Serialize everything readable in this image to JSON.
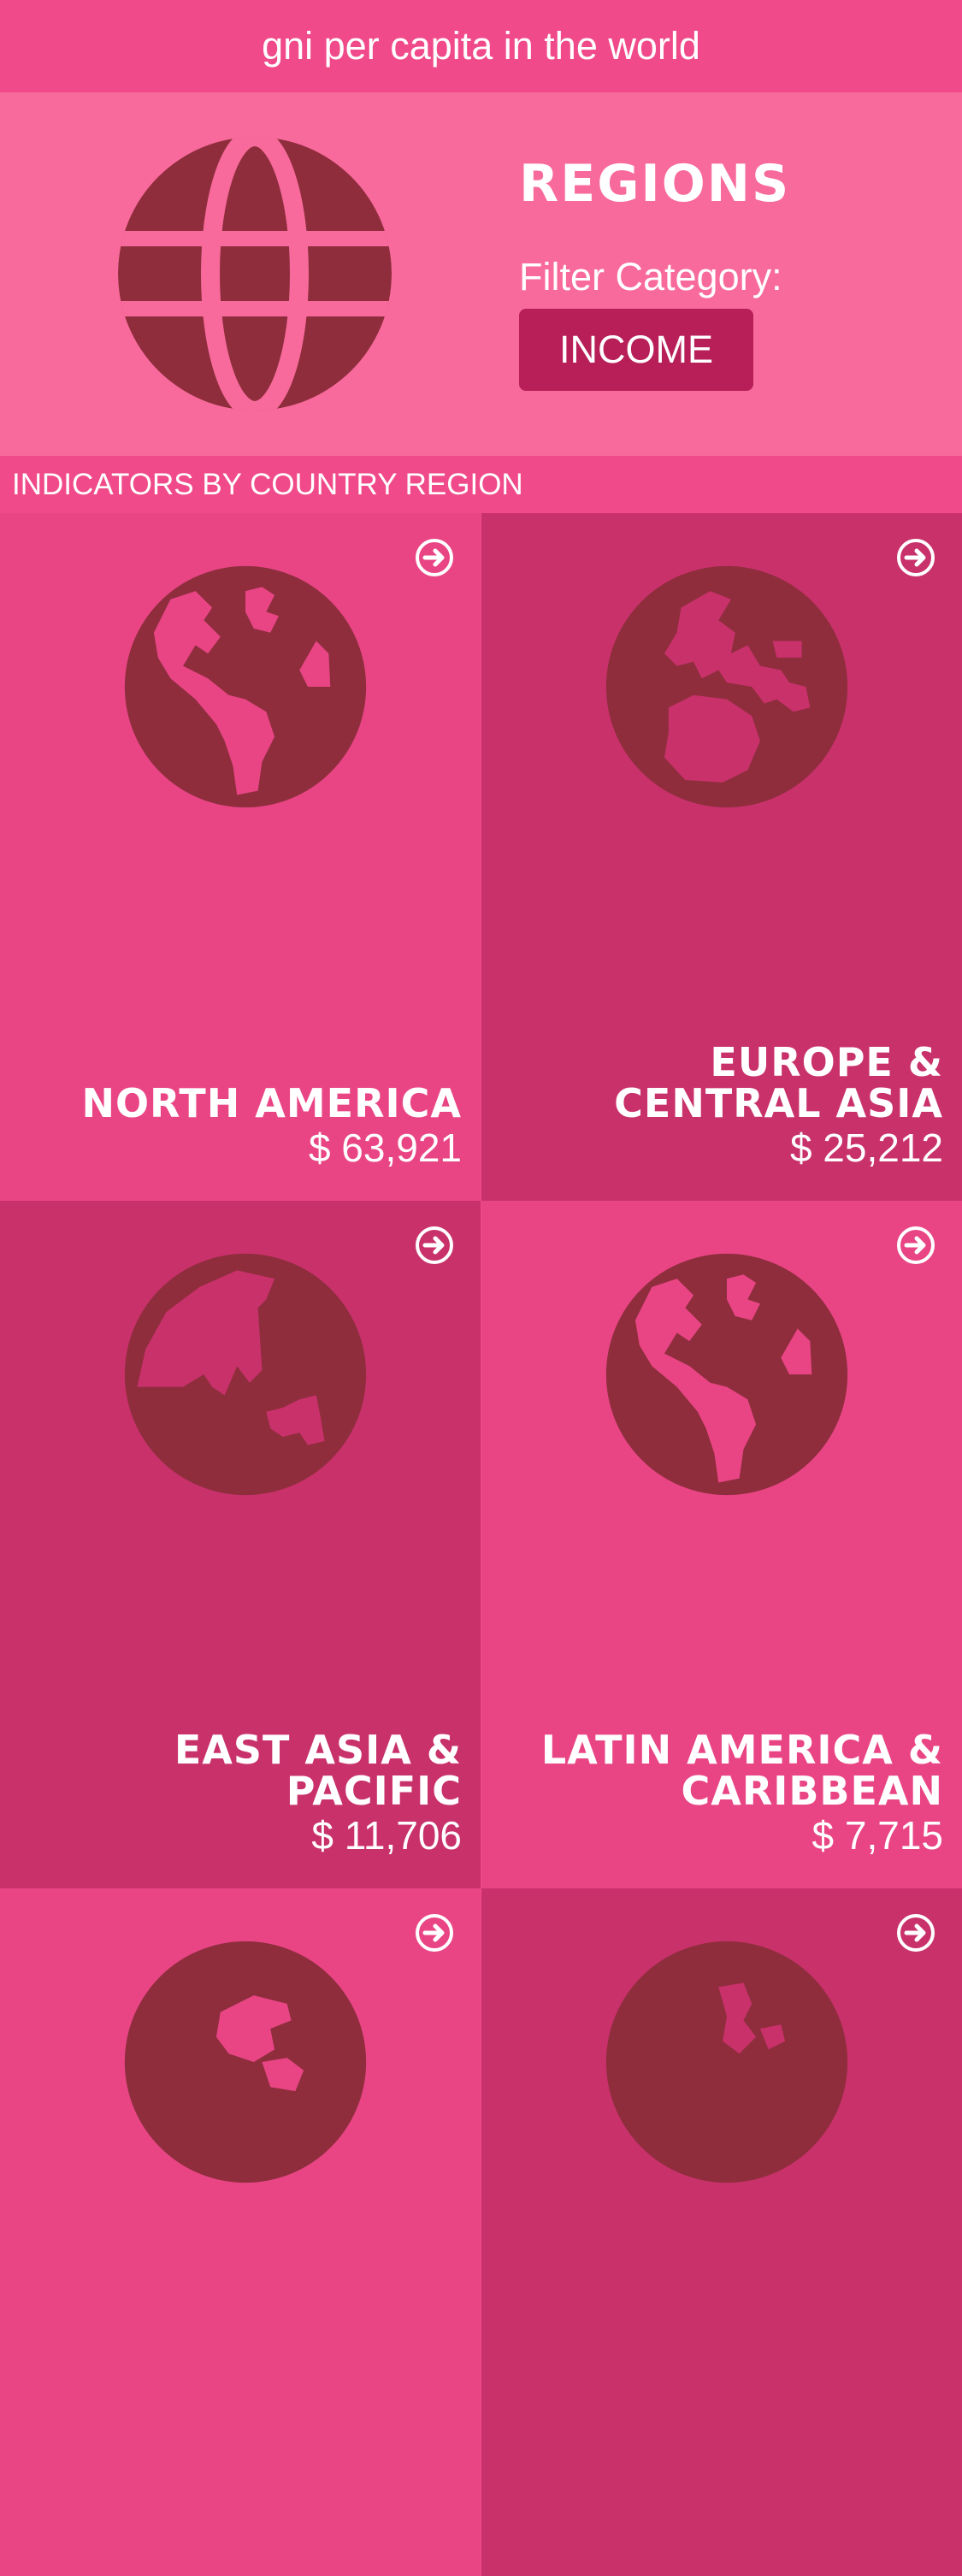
{
  "header": {
    "title": "gni per capita in the world"
  },
  "hero": {
    "title": "REGIONS",
    "filter_label": "Filter Category:",
    "filter_button": "INCOME",
    "icon": "globe-grid-icon"
  },
  "section": {
    "label": "INDICATORS BY COUNTRY REGION"
  },
  "colors": {
    "header_bg": "#f04a8a",
    "hero_bg": "#f86a9b",
    "button_bg": "#b81f58",
    "tile_light": "#e94585",
    "tile_dark": "#c9316b",
    "globe": "#8f2d3d"
  },
  "regions": [
    {
      "name_line1": "NORTH AMERICA",
      "name_line2": "",
      "value": "$ 63,921",
      "icon": "globe-americas-icon"
    },
    {
      "name_line1": "EUROPE &",
      "name_line2": "CENTRAL ASIA",
      "value": "$ 25,212",
      "icon": "globe-europe-africa-icon"
    },
    {
      "name_line1": "EAST ASIA &",
      "name_line2": "PACIFIC",
      "value": "$ 11,706",
      "icon": "globe-asia-icon"
    },
    {
      "name_line1": "LATIN AMERICA &",
      "name_line2": "CARIBBEAN",
      "value": "$ 7,715",
      "icon": "globe-americas-icon"
    },
    {
      "name_line1": "",
      "name_line2": "",
      "value": "",
      "icon": "globe-asia-icon"
    },
    {
      "name_line1": "",
      "name_line2": "",
      "value": "",
      "icon": "globe-asia-icon"
    }
  ]
}
